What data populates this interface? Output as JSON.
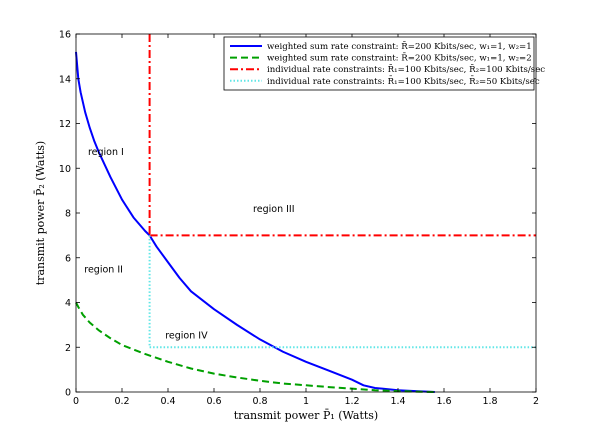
{
  "chart_data": {
    "type": "line",
    "xlabel": "transmit power P̄₁ (Watts)",
    "ylabel": "transmit power P̄₂ (Watts)",
    "xlim": [
      0,
      2
    ],
    "ylim": [
      0,
      16
    ],
    "xticks": [
      "0",
      "0.2",
      "0.4",
      "0.6",
      "0.8",
      "1",
      "1.2",
      "1.4",
      "1.6",
      "1.8",
      "2"
    ],
    "yticks": [
      "0",
      "2",
      "4",
      "6",
      "8",
      "10",
      "12",
      "14",
      "16"
    ],
    "grid": false,
    "legend_position": "top-right",
    "series": [
      {
        "name": "weighted sum rate constraint: R̄=200 Kbits/sec, w₁=1, w₂=1",
        "color": "#0000ff",
        "style": "solid",
        "x": [
          0.0,
          0.01,
          0.02,
          0.04,
          0.06,
          0.08,
          0.1,
          0.15,
          0.2,
          0.25,
          0.3,
          0.32,
          0.35,
          0.4,
          0.45,
          0.5,
          0.6,
          0.7,
          0.8,
          0.9,
          1.0,
          1.1,
          1.2,
          1.25,
          1.3,
          1.4,
          1.5,
          1.56
        ],
        "y": [
          15.2,
          14.0,
          13.4,
          12.5,
          11.8,
          11.2,
          10.7,
          9.6,
          8.6,
          7.8,
          7.2,
          7.0,
          6.5,
          5.8,
          5.1,
          4.5,
          3.7,
          3.0,
          2.35,
          1.8,
          1.35,
          0.95,
          0.55,
          0.3,
          0.18,
          0.08,
          0.03,
          0.0
        ]
      },
      {
        "name": "weighted sum rate constraint: R̄=200 Kbits/sec, w₁=1, w₂=2",
        "color": "#00a000",
        "style": "dashed",
        "x": [
          0.0,
          0.01,
          0.03,
          0.06,
          0.1,
          0.15,
          0.2,
          0.3,
          0.4,
          0.5,
          0.6,
          0.7,
          0.8,
          0.9,
          1.0,
          1.1,
          1.2,
          1.3,
          1.4,
          1.5,
          1.56
        ],
        "y": [
          4.0,
          3.8,
          3.45,
          3.1,
          2.75,
          2.4,
          2.1,
          1.7,
          1.35,
          1.05,
          0.82,
          0.65,
          0.5,
          0.38,
          0.3,
          0.22,
          0.15,
          0.08,
          0.04,
          0.01,
          0.0
        ]
      },
      {
        "name": "individual rate constraints: R̄₁=100 Kbits/sec, R̄₂=100 Kbits/sec",
        "color": "#ff0000",
        "style": "dashdot",
        "segments": [
          {
            "x": [
              0.32,
              0.32
            ],
            "y": [
              16,
              7.0
            ]
          },
          {
            "x": [
              0.32,
              2.0
            ],
            "y": [
              7.0,
              7.0
            ]
          }
        ]
      },
      {
        "name": "individual rate constraints: R̄₁=100 Kbits/sec, R̄₂=50 Kbits/sec",
        "color": "#5fe6e6",
        "style": "dotted",
        "segments": [
          {
            "x": [
              0.32,
              0.32
            ],
            "y": [
              7.0,
              2.0
            ]
          },
          {
            "x": [
              0.32,
              2.0
            ],
            "y": [
              2.0,
              2.0
            ]
          }
        ]
      }
    ],
    "annotations": [
      {
        "text": "region I",
        "x": 0.13,
        "y": 10.6
      },
      {
        "text": "region II",
        "x": 0.12,
        "y": 5.35
      },
      {
        "text": "region III",
        "x": 0.86,
        "y": 8.05
      },
      {
        "text": "region IV",
        "x": 0.48,
        "y": 2.4
      }
    ]
  }
}
